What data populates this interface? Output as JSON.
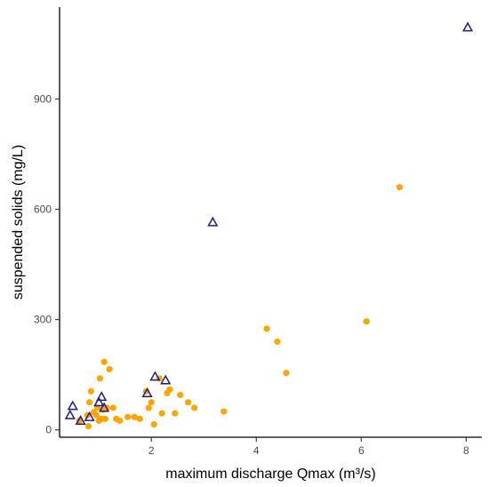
{
  "chart_data": {
    "type": "scatter",
    "title": "",
    "xlabel": "maximum discharge Qmax (m³/s)",
    "ylabel": "suspended solids (mg/L)",
    "xlim": [
      0.25,
      8.3
    ],
    "ylim": [
      -20,
      1150
    ],
    "x_ticks": [
      2,
      4,
      6,
      8
    ],
    "y_ticks": [
      0,
      300,
      600,
      900
    ],
    "grid": false,
    "legend": "none",
    "series": [
      {
        "marker": "circle",
        "color": "#FFA500",
        "points": [
          [
            0.63,
            25
          ],
          [
            0.78,
            40
          ],
          [
            0.8,
            10
          ],
          [
            0.82,
            75
          ],
          [
            0.85,
            105
          ],
          [
            0.9,
            48
          ],
          [
            0.95,
            40
          ],
          [
            0.97,
            60
          ],
          [
            1.0,
            25
          ],
          [
            1.02,
            140
          ],
          [
            1.05,
            30
          ],
          [
            1.08,
            55
          ],
          [
            1.1,
            185
          ],
          [
            1.12,
            30
          ],
          [
            1.15,
            60
          ],
          [
            1.2,
            165
          ],
          [
            1.27,
            60
          ],
          [
            1.33,
            30
          ],
          [
            1.4,
            25
          ],
          [
            1.55,
            35
          ],
          [
            1.68,
            35
          ],
          [
            1.78,
            30
          ],
          [
            1.9,
            105
          ],
          [
            1.95,
            60
          ],
          [
            2.0,
            75
          ],
          [
            2.05,
            15
          ],
          [
            2.15,
            140
          ],
          [
            2.2,
            45
          ],
          [
            2.3,
            100
          ],
          [
            2.35,
            110
          ],
          [
            2.45,
            45
          ],
          [
            2.55,
            95
          ],
          [
            2.7,
            75
          ],
          [
            2.82,
            60
          ],
          [
            3.38,
            50
          ],
          [
            4.2,
            275
          ],
          [
            4.4,
            240
          ],
          [
            4.57,
            155
          ],
          [
            6.1,
            295
          ],
          [
            6.73,
            660
          ]
        ]
      },
      {
        "marker": "triangle-open",
        "color": "#1F1A8A",
        "points": [
          [
            0.45,
            40
          ],
          [
            0.5,
            65
          ],
          [
            0.65,
            25
          ],
          [
            0.82,
            35
          ],
          [
            1.0,
            75
          ],
          [
            1.05,
            90
          ],
          [
            1.1,
            60
          ],
          [
            1.92,
            100
          ],
          [
            2.07,
            145
          ],
          [
            2.27,
            135
          ],
          [
            3.17,
            565
          ],
          [
            8.03,
            1095
          ]
        ]
      }
    ]
  }
}
